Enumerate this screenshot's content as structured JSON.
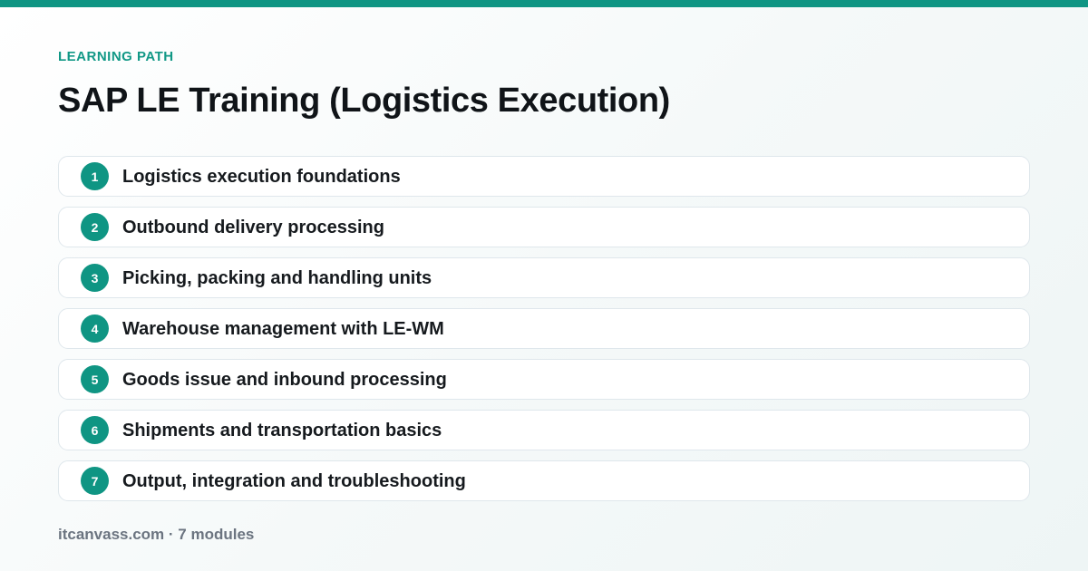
{
  "accent_color": "#0f9583",
  "eyebrow": "LEARNING PATH",
  "title": "SAP LE Training (Logistics Execution)",
  "modules": [
    {
      "number": "1",
      "label": "Logistics execution foundations"
    },
    {
      "number": "2",
      "label": "Outbound delivery processing"
    },
    {
      "number": "3",
      "label": "Picking, packing and handling units"
    },
    {
      "number": "4",
      "label": "Warehouse management with LE-WM"
    },
    {
      "number": "5",
      "label": "Goods issue and inbound processing"
    },
    {
      "number": "6",
      "label": "Shipments and transportation basics"
    },
    {
      "number": "7",
      "label": "Output, integration and troubleshooting"
    }
  ],
  "footer": "itcanvass.com · 7 modules"
}
